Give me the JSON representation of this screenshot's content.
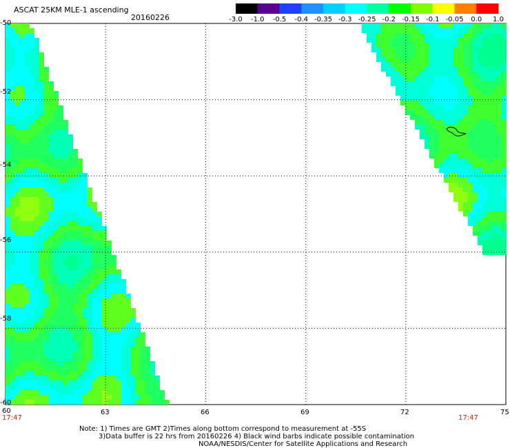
{
  "header": {
    "title": "ASCAT 25KM MLE-1 ascending",
    "date": "20160226"
  },
  "colorbar": {
    "labels": [
      "-3.0",
      "-1.0",
      "-0.5",
      "-0.4",
      "-0.35",
      "-0.3",
      "-0.25",
      "-0.2",
      "-0.15",
      "-0.1",
      "-0.05",
      "0.0",
      "1.0"
    ],
    "colors": [
      "#000000",
      "#5a0090",
      "#2040ff",
      "#1e90ff",
      "#00cfff",
      "#00ffff",
      "#00ffa0",
      "#00ff00",
      "#80ff00",
      "#ffff00",
      "#ff8000",
      "#ff0000"
    ]
  },
  "map": {
    "lon_ticks": [
      "60",
      "63",
      "66",
      "69",
      "72",
      "75"
    ],
    "lat_ticks": [
      "-50",
      "-52",
      "-54",
      "-56",
      "-58",
      "-60"
    ],
    "lon_range": [
      60,
      75
    ],
    "lat_range": [
      -50,
      -60
    ],
    "grid": true
  },
  "times": {
    "left": "17:47",
    "right": "17:47"
  },
  "notes": {
    "line1": "Note: 1) Times are GMT 2)Times along bottom correspond to measurement at -55S",
    "line2": "3)Data buffer is 22 hrs from 20160226 4) Black wind barbs indicate possible contamination",
    "line3": "NOAA/NESDIS/Center for Satellite Applications and Research"
  }
}
